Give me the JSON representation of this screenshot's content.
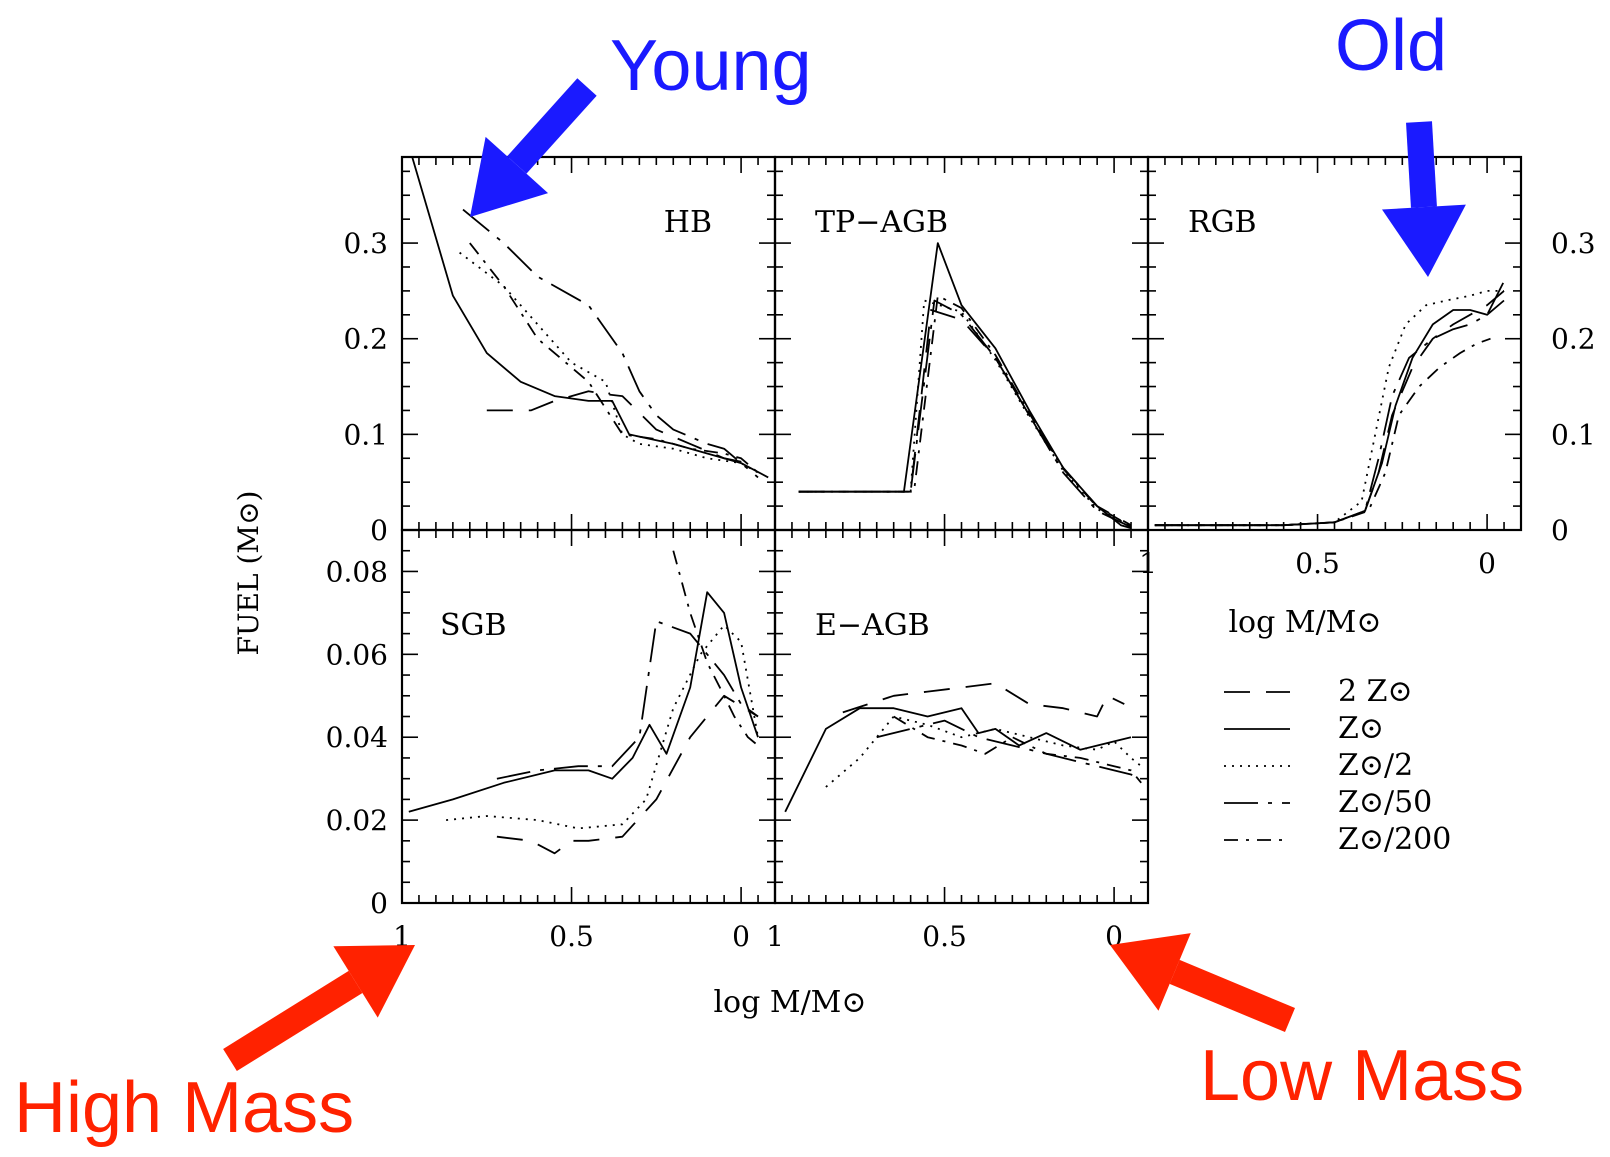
{
  "colors": {
    "annotation_blue": "#1a1aff",
    "annotation_red": "#ff2200",
    "line": "#000000"
  },
  "annotations": {
    "young": "Young",
    "old": "Old",
    "high_mass": "High Mass",
    "low_mass": "Low Mass"
  },
  "legend": {
    "entries": [
      {
        "name": "2 Z⊙",
        "dash": "26,16"
      },
      {
        "name": "Z⊙",
        "dash": ""
      },
      {
        "name": "Z⊙/2",
        "dash": "2,6"
      },
      {
        "name": "Z⊙/50",
        "dash": "34,10,4,10"
      },
      {
        "name": "Z⊙/200",
        "dash": "14,8,3,8"
      }
    ]
  },
  "chart_data": [
    {
      "type": "line",
      "title": "HB",
      "xlabel": "",
      "ylabel": "",
      "xlim": [
        1.0,
        -0.1
      ],
      "ylim": [
        0,
        0.39
      ],
      "xticks": [],
      "yticks": [
        "0",
        "0.1",
        "0.2",
        "0.3"
      ],
      "series": [
        {
          "name": "2 Z⊙",
          "x": [
            0.75,
            0.62,
            0.55,
            0.45,
            0.4,
            0.35,
            0.25,
            0.15,
            0.05,
            -0.02
          ],
          "y": [
            0.125,
            0.125,
            0.135,
            0.145,
            0.142,
            0.14,
            0.105,
            0.09,
            0.075,
            0.07
          ]
        },
        {
          "name": "Z⊙",
          "x": [
            0.97,
            0.85,
            0.75,
            0.65,
            0.55,
            0.45,
            0.38,
            0.33,
            0.2,
            0.1,
            0.0,
            -0.08
          ],
          "y": [
            0.39,
            0.245,
            0.185,
            0.155,
            0.14,
            0.135,
            0.135,
            0.1,
            0.09,
            0.08,
            0.07,
            0.055
          ]
        },
        {
          "name": "Z⊙/2",
          "x": [
            0.83,
            0.7,
            0.6,
            0.5,
            0.4,
            0.35,
            0.3,
            0.2,
            0.1,
            0.0,
            -0.05
          ],
          "y": [
            0.29,
            0.255,
            0.215,
            0.175,
            0.155,
            0.1,
            0.09,
            0.085,
            0.075,
            0.07,
            0.06
          ]
        },
        {
          "name": "Z⊙/50",
          "x": [
            0.82,
            0.7,
            0.6,
            0.5,
            0.45,
            0.35,
            0.3,
            0.25,
            0.2,
            0.1,
            0.05,
            -0.05
          ],
          "y": [
            0.335,
            0.3,
            0.265,
            0.245,
            0.235,
            0.185,
            0.145,
            0.12,
            0.105,
            0.09,
            0.085,
            0.055
          ]
        },
        {
          "name": "Z⊙/200",
          "x": [
            0.8,
            0.7,
            0.6,
            0.45,
            0.35,
            0.25,
            0.15,
            0.05,
            0.0,
            -0.05
          ],
          "y": [
            0.3,
            0.255,
            0.2,
            0.155,
            0.1,
            0.095,
            0.085,
            0.08,
            0.075,
            0.06
          ]
        }
      ]
    },
    {
      "type": "line",
      "title": "TP−AGB",
      "xlabel": "",
      "ylabel": "",
      "xlim": [
        1.0,
        -0.1
      ],
      "ylim": [
        0,
        0.39
      ],
      "xticks": [],
      "yticks": [],
      "series": [
        {
          "name": "2 Z⊙",
          "x": [
            0.93,
            0.66,
            0.6,
            0.54,
            0.45,
            0.35,
            0.25,
            0.15,
            0.05,
            -0.05
          ],
          "y": [
            0.04,
            0.04,
            0.04,
            0.23,
            0.22,
            0.18,
            0.12,
            0.065,
            0.025,
            0.005
          ]
        },
        {
          "name": "Z⊙",
          "x": [
            0.93,
            0.62,
            0.52,
            0.45,
            0.35,
            0.25,
            0.15,
            0.05,
            -0.02,
            -0.05
          ],
          "y": [
            0.04,
            0.04,
            0.3,
            0.235,
            0.19,
            0.125,
            0.065,
            0.025,
            0.005,
            0.002
          ]
        },
        {
          "name": "Z⊙/2",
          "x": [
            0.93,
            0.6,
            0.56,
            0.45,
            0.35,
            0.25,
            0.15,
            0.05,
            -0.05
          ],
          "y": [
            0.04,
            0.04,
            0.24,
            0.228,
            0.178,
            0.118,
            0.062,
            0.022,
            0.004
          ]
        },
        {
          "name": "Z⊙/50",
          "x": [
            0.93,
            0.6,
            0.53,
            0.45,
            0.35,
            0.25,
            0.15,
            0.05,
            -0.05
          ],
          "y": [
            0.04,
            0.04,
            0.24,
            0.225,
            0.18,
            0.12,
            0.06,
            0.02,
            0.003
          ]
        },
        {
          "name": "Z⊙/200",
          "x": [
            0.93,
            0.59,
            0.52,
            0.45,
            0.35,
            0.25,
            0.15,
            0.05,
            -0.05
          ],
          "y": [
            0.04,
            0.04,
            0.245,
            0.232,
            0.183,
            0.122,
            0.064,
            0.024,
            0.004
          ]
        }
      ]
    },
    {
      "type": "line",
      "title": "RGB",
      "xlabel": "log M/M⊙",
      "ylabel": "",
      "xlim": [
        1.0,
        -0.1
      ],
      "ylim": [
        0,
        0.39
      ],
      "xticks": [
        "1",
        "0.5",
        "0"
      ],
      "yticks": [
        "0",
        "0.1",
        "0.2",
        "0.3"
      ],
      "series": [
        {
          "name": "2 Z⊙",
          "x": [
            0.98,
            0.6,
            0.45,
            0.36,
            0.32,
            0.28,
            0.22,
            0.16,
            0.1,
            0.05,
            0.0,
            -0.05
          ],
          "y": [
            0.005,
            0.005,
            0.008,
            0.02,
            0.06,
            0.12,
            0.17,
            0.2,
            0.215,
            0.225,
            0.235,
            0.25
          ]
        },
        {
          "name": "Z⊙",
          "x": [
            0.98,
            0.6,
            0.45,
            0.36,
            0.31,
            0.27,
            0.22,
            0.16,
            0.1,
            0.05,
            0.0,
            -0.05
          ],
          "y": [
            0.005,
            0.005,
            0.008,
            0.02,
            0.07,
            0.13,
            0.18,
            0.215,
            0.23,
            0.23,
            0.225,
            0.24
          ]
        },
        {
          "name": "Z⊙/2",
          "x": [
            0.98,
            0.6,
            0.45,
            0.37,
            0.33,
            0.29,
            0.24,
            0.18,
            0.12,
            0.05,
            0.0,
            -0.05
          ],
          "y": [
            0.005,
            0.005,
            0.008,
            0.03,
            0.1,
            0.17,
            0.215,
            0.235,
            0.24,
            0.245,
            0.25,
            0.25
          ]
        },
        {
          "name": "Z⊙/50",
          "x": [
            0.98,
            0.6,
            0.45,
            0.36,
            0.32,
            0.28,
            0.23,
            0.16,
            0.1,
            0.05,
            0.0,
            -0.05
          ],
          "y": [
            0.005,
            0.005,
            0.008,
            0.02,
            0.075,
            0.14,
            0.18,
            0.2,
            0.21,
            0.215,
            0.225,
            0.26
          ]
        },
        {
          "name": "Z⊙/200",
          "x": [
            0.98,
            0.6,
            0.45,
            0.35,
            0.3,
            0.26,
            0.2,
            0.14,
            0.08,
            0.03,
            -0.01
          ],
          "y": [
            0.005,
            0.005,
            0.008,
            0.02,
            0.06,
            0.12,
            0.15,
            0.17,
            0.185,
            0.195,
            0.2
          ]
        }
      ]
    },
    {
      "type": "line",
      "title": "SGB",
      "xlabel": "log M/M⊙",
      "ylabel": "FUEL (M⊙)",
      "xlim": [
        1.0,
        -0.1
      ],
      "ylim": [
        0,
        0.09
      ],
      "xticks": [
        "1",
        "0.5",
        "0"
      ],
      "yticks": [
        "0",
        "0.02",
        "0.04",
        "0.06",
        "0.08"
      ],
      "series": [
        {
          "name": "2 Z⊙",
          "x": [
            0.72,
            0.62,
            0.55,
            0.5,
            0.45,
            0.35,
            0.25,
            0.15,
            0.05,
            -0.05
          ],
          "y": [
            0.016,
            0.015,
            0.012,
            0.015,
            0.015,
            0.016,
            0.025,
            0.04,
            0.05,
            0.045
          ]
        },
        {
          "name": "Z⊙",
          "x": [
            0.98,
            0.85,
            0.7,
            0.55,
            0.45,
            0.38,
            0.32,
            0.27,
            0.22,
            0.15,
            0.1,
            0.05,
            0.0,
            -0.05
          ],
          "y": [
            0.022,
            0.025,
            0.029,
            0.032,
            0.032,
            0.03,
            0.035,
            0.043,
            0.036,
            0.052,
            0.075,
            0.07,
            0.052,
            0.04
          ]
        },
        {
          "name": "Z⊙/2",
          "x": [
            0.87,
            0.75,
            0.6,
            0.48,
            0.35,
            0.28,
            0.2,
            0.12,
            0.05,
            0.0,
            -0.05
          ],
          "y": [
            0.02,
            0.021,
            0.02,
            0.018,
            0.019,
            0.025,
            0.047,
            0.06,
            0.067,
            0.063,
            0.04
          ]
        },
        {
          "name": "Z⊙/50",
          "x": [
            0.72,
            0.6,
            0.48,
            0.38,
            0.3,
            0.25,
            0.15,
            0.1,
            0.05,
            0.0,
            -0.05
          ],
          "y": [
            0.03,
            0.032,
            0.033,
            0.033,
            0.04,
            0.068,
            0.065,
            0.06,
            0.055,
            0.048,
            0.045
          ]
        },
        {
          "name": "Z⊙/200",
          "x": [
            0.2,
            0.15,
            0.1,
            0.05,
            0.02,
            -0.02,
            -0.05
          ],
          "y": [
            0.085,
            0.07,
            0.058,
            0.05,
            0.045,
            0.04,
            0.038
          ]
        }
      ]
    },
    {
      "type": "line",
      "title": "E−AGB",
      "xlabel": "",
      "ylabel": "",
      "xlim": [
        1.0,
        -0.1
      ],
      "ylim": [
        0,
        0.09
      ],
      "xticks": [
        "1",
        "0.5",
        "0"
      ],
      "yticks": [],
      "series": [
        {
          "name": "2 Z⊙",
          "x": [
            0.8,
            0.65,
            0.55,
            0.45,
            0.35,
            0.25,
            0.15,
            0.05,
            0.02,
            -0.03
          ],
          "y": [
            0.046,
            0.05,
            0.051,
            0.052,
            0.053,
            0.048,
            0.047,
            0.045,
            0.05,
            0.048
          ]
        },
        {
          "name": "Z⊙",
          "x": [
            0.97,
            0.85,
            0.75,
            0.65,
            0.55,
            0.45,
            0.4,
            0.35,
            0.28,
            0.2,
            0.1,
            0.0,
            -0.05
          ],
          "y": [
            0.022,
            0.042,
            0.047,
            0.047,
            0.045,
            0.047,
            0.041,
            0.042,
            0.038,
            0.041,
            0.037,
            0.039,
            0.04
          ]
        },
        {
          "name": "Z⊙/2",
          "x": [
            0.85,
            0.75,
            0.65,
            0.55,
            0.45,
            0.35,
            0.25,
            0.15,
            0.05,
            0.0,
            -0.05,
            -0.08
          ],
          "y": [
            0.028,
            0.035,
            0.045,
            0.043,
            0.04,
            0.042,
            0.04,
            0.038,
            0.037,
            0.039,
            0.035,
            0.033
          ]
        },
        {
          "name": "Z⊙/50",
          "x": [
            0.7,
            0.6,
            0.5,
            0.4,
            0.3,
            0.2,
            0.1,
            0.0,
            -0.05,
            -0.08
          ],
          "y": [
            0.04,
            0.042,
            0.044,
            0.04,
            0.038,
            0.036,
            0.034,
            0.032,
            0.031,
            0.03
          ]
        },
        {
          "name": "Z⊙/200",
          "x": [
            0.65,
            0.55,
            0.45,
            0.38,
            0.3,
            0.2,
            0.1,
            0.0,
            -0.05,
            -0.08
          ],
          "y": [
            0.045,
            0.04,
            0.038,
            0.036,
            0.04,
            0.036,
            0.035,
            0.033,
            0.032,
            0.029
          ]
        }
      ]
    }
  ]
}
